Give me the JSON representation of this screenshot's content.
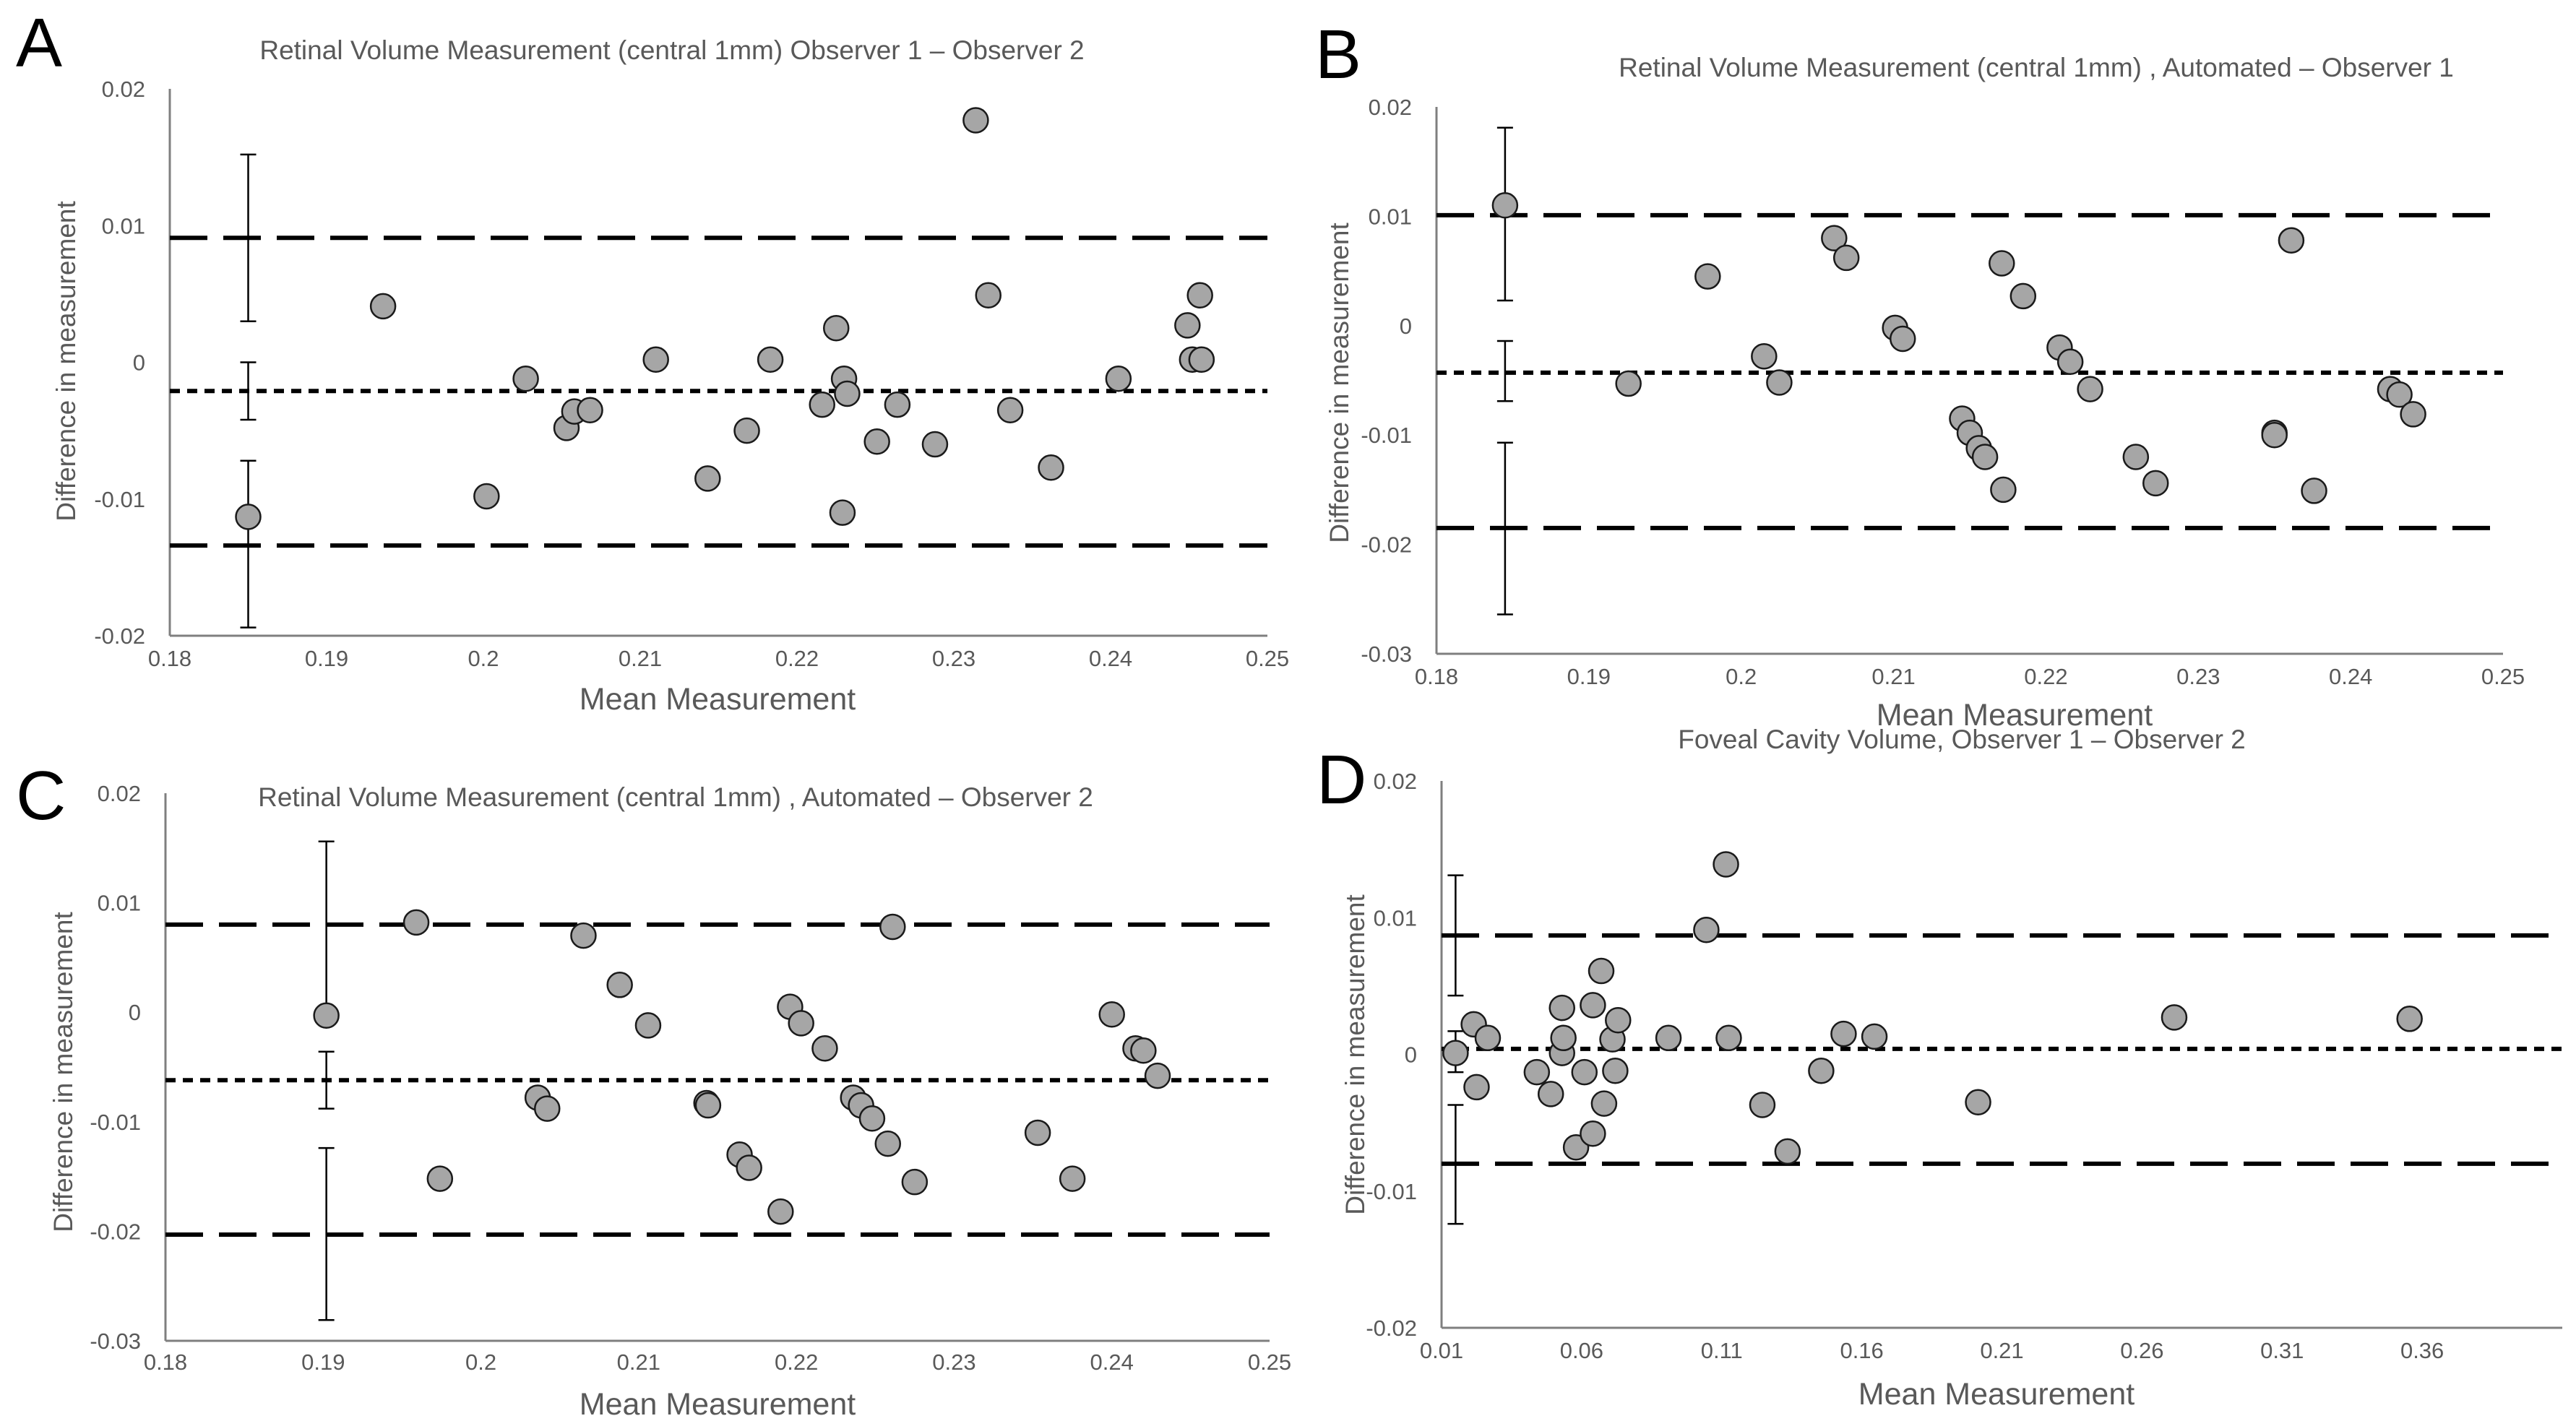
{
  "colors": {
    "marker_fill": "#a6a6a6",
    "marker_stroke": "#1a1a1a",
    "axis": "#7f7f7f",
    "line": "#000000",
    "text": "#595959"
  },
  "chart_data": [
    {
      "panel": "A",
      "type": "scatter",
      "title": "Retinal Volume Measurement (central 1mm) Observer 1 – Observer 2",
      "xlabel": "Mean Measurement",
      "ylabel": "Difference in measurement",
      "xlim": [
        0.18,
        0.25
      ],
      "ylim": [
        -0.02,
        0.02
      ],
      "xticks": [
        0.18,
        0.19,
        0.2,
        0.21,
        0.22,
        0.23,
        0.24,
        0.25
      ],
      "xtick_labels": [
        "0.18",
        "0.19",
        "0.2",
        "0.21",
        "0.22",
        "0.23",
        "0.24",
        "0.25"
      ],
      "yticks": [
        0.02,
        0.01,
        0,
        -0.01,
        -0.02
      ],
      "ytick_labels": [
        "0.02",
        "0.01",
        "0",
        "-0.01",
        "-0.02"
      ],
      "mean_diff": -0.0021,
      "upper_loa": 0.0091,
      "lower_loa": -0.0134,
      "ci_x": 0.185,
      "ci": {
        "upper": [
          0.003,
          0.0152
        ],
        "mean": [
          -0.0042,
          0.0
        ],
        "lower": [
          -0.0194,
          -0.0072
        ]
      },
      "points": [
        [
          0.185,
          -0.0113
        ],
        [
          0.1936,
          0.0041
        ],
        [
          0.2002,
          -0.0098
        ],
        [
          0.2027,
          -0.0012
        ],
        [
          0.2053,
          -0.0048
        ],
        [
          0.2058,
          -0.0036
        ],
        [
          0.2068,
          -0.0035
        ],
        [
          0.211,
          0.0002
        ],
        [
          0.2143,
          -0.0085
        ],
        [
          0.2168,
          -0.005
        ],
        [
          0.2183,
          0.0002
        ],
        [
          0.2216,
          -0.0031
        ],
        [
          0.2225,
          0.0025
        ],
        [
          0.223,
          -0.0012
        ],
        [
          0.2232,
          -0.0023
        ],
        [
          0.2229,
          -0.011
        ],
        [
          0.2251,
          -0.0058
        ],
        [
          0.2264,
          -0.0031
        ],
        [
          0.2288,
          -0.006
        ],
        [
          0.2314,
          0.0177
        ],
        [
          0.2322,
          0.0049
        ],
        [
          0.2336,
          -0.0035
        ],
        [
          0.2362,
          -0.0077
        ],
        [
          0.2405,
          -0.0012
        ],
        [
          0.2449,
          0.0027
        ],
        [
          0.2452,
          0.0002
        ],
        [
          0.2457,
          0.0049
        ],
        [
          0.2458,
          0.0002
        ]
      ]
    },
    {
      "panel": "B",
      "type": "scatter",
      "title": "Retinal Volume Measurement (central 1mm) , Automated – Observer 1",
      "xlabel": "Mean Measurement",
      "ylabel": "Difference in measurement",
      "xlim": [
        0.18,
        0.25
      ],
      "ylim": [
        -0.03,
        0.02
      ],
      "xticks": [
        0.18,
        0.19,
        0.2,
        0.21,
        0.22,
        0.23,
        0.24,
        0.25
      ],
      "xtick_labels": [
        "0.18",
        "0.19",
        "0.2",
        "0.21",
        "0.22",
        "0.23",
        "0.24",
        "0.25"
      ],
      "yticks": [
        0.02,
        0.01,
        0,
        -0.01,
        -0.02,
        -0.03
      ],
      "ytick_labels": [
        "0.02",
        "0.01",
        "0",
        "-0.01",
        "-0.02",
        "-0.03"
      ],
      "mean_diff": -0.0043,
      "upper_loa": 0.0101,
      "lower_loa": -0.0185,
      "ci_x": 0.1845,
      "ci": {
        "upper": [
          0.0023,
          0.0181
        ],
        "mean": [
          -0.0069,
          -0.0014
        ],
        "lower": [
          -0.0264,
          -0.0107
        ]
      },
      "points": [
        [
          0.1845,
          0.011
        ],
        [
          0.1926,
          -0.0053
        ],
        [
          0.1978,
          0.0045
        ],
        [
          0.2015,
          -0.0028
        ],
        [
          0.2025,
          -0.0052
        ],
        [
          0.2061,
          0.008
        ],
        [
          0.2069,
          0.0062
        ],
        [
          0.2101,
          -0.0002
        ],
        [
          0.2106,
          -0.0012
        ],
        [
          0.2145,
          -0.0085
        ],
        [
          0.215,
          -0.0098
        ],
        [
          0.2156,
          -0.0112
        ],
        [
          0.216,
          -0.012
        ],
        [
          0.2171,
          0.0057
        ],
        [
          0.2172,
          -0.015
        ],
        [
          0.2185,
          0.0027
        ],
        [
          0.2209,
          -0.002
        ],
        [
          0.2216,
          -0.0033
        ],
        [
          0.2229,
          -0.0058
        ],
        [
          0.2259,
          -0.012
        ],
        [
          0.2272,
          -0.0144
        ],
        [
          0.235,
          -0.0098
        ],
        [
          0.235,
          -0.01
        ],
        [
          0.2361,
          0.0078
        ],
        [
          0.2376,
          -0.0151
        ],
        [
          0.2426,
          -0.0058
        ],
        [
          0.2432,
          -0.0063
        ],
        [
          0.2441,
          -0.0081
        ]
      ]
    },
    {
      "panel": "C",
      "type": "scatter",
      "title": "Retinal Volume Measurement (central 1mm) , Automated – Observer 2",
      "xlabel": "Mean Measurement",
      "ylabel": "Difference in measurement",
      "xlim": [
        0.18,
        0.25
      ],
      "ylim": [
        -0.03,
        0.02
      ],
      "xticks": [
        0.18,
        0.19,
        0.2,
        0.21,
        0.22,
        0.23,
        0.24,
        0.25
      ],
      "xtick_labels": [
        "0.18",
        "0.19",
        "0.2",
        "0.21",
        "0.22",
        "0.23",
        "0.24",
        "0.25"
      ],
      "yticks": [
        0.02,
        0.01,
        0,
        -0.01,
        -0.02,
        -0.03
      ],
      "ytick_labels": [
        "0.02",
        "0.01",
        "0",
        "-0.01",
        "-0.02",
        "-0.03"
      ],
      "mean_diff": -0.0062,
      "upper_loa": 0.008,
      "lower_loa": -0.0203,
      "ci_x": 0.1902,
      "ci": {
        "upper": [
          -0.0002,
          0.0156
        ],
        "mean": [
          -0.0088,
          -0.0036
        ],
        "lower": [
          -0.0281,
          -0.0124
        ]
      },
      "points": [
        [
          0.1902,
          -0.0003
        ],
        [
          0.1959,
          0.0082
        ],
        [
          0.1974,
          -0.0152
        ],
        [
          0.2036,
          -0.0078
        ],
        [
          0.2042,
          -0.0088
        ],
        [
          0.2065,
          0.007
        ],
        [
          0.2088,
          0.0025
        ],
        [
          0.2106,
          -0.0012
        ],
        [
          0.2143,
          -0.0083
        ],
        [
          0.2144,
          -0.0085
        ],
        [
          0.2164,
          -0.013
        ],
        [
          0.217,
          -0.0142
        ],
        [
          0.219,
          -0.0182
        ],
        [
          0.2196,
          0.0005
        ],
        [
          0.2203,
          -0.001
        ],
        [
          0.2218,
          -0.0033
        ],
        [
          0.2236,
          -0.0078
        ],
        [
          0.2241,
          -0.0085
        ],
        [
          0.2248,
          -0.0097
        ],
        [
          0.2258,
          -0.012
        ],
        [
          0.2261,
          0.0078
        ],
        [
          0.2275,
          -0.0155
        ],
        [
          0.2353,
          -0.011
        ],
        [
          0.2375,
          -0.0152
        ],
        [
          0.24,
          -0.0002
        ],
        [
          0.2415,
          -0.0033
        ],
        [
          0.242,
          -0.0035
        ],
        [
          0.2429,
          -0.0058
        ]
      ]
    },
    {
      "panel": "D",
      "type": "scatter",
      "title": "Foveal Cavity Volume, Observer 1 – Observer 2",
      "xlabel": "Mean Measurement",
      "ylabel": "Difference in measurement",
      "xlim": [
        0.01,
        0.41
      ],
      "ylim": [
        -0.02,
        0.02
      ],
      "xticks": [
        0.01,
        0.06,
        0.11,
        0.16,
        0.21,
        0.26,
        0.31,
        0.36
      ],
      "xtick_labels": [
        "0.01",
        "0.06",
        "0.11",
        "0.16",
        "0.21",
        "0.26",
        "0.31",
        "0.36"
      ],
      "yticks": [
        0.02,
        0.01,
        0,
        -0.01,
        -0.02
      ],
      "ytick_labels": [
        "0.02",
        "0.01",
        "0",
        "-0.01",
        "-0.02"
      ],
      "mean_diff": 0.0004,
      "upper_loa": 0.0087,
      "lower_loa": -0.008,
      "ci_x": 0.015,
      "ci": {
        "upper": [
          0.0043,
          0.0131
        ],
        "mean": [
          -0.0013,
          0.0017
        ],
        "lower": [
          -0.0124,
          -0.0037
        ]
      },
      "points": [
        [
          0.015,
          0.0001
        ],
        [
          0.0215,
          0.0022
        ],
        [
          0.0225,
          -0.0024
        ],
        [
          0.0265,
          0.0012
        ],
        [
          0.044,
          -0.0013
        ],
        [
          0.049,
          -0.0029
        ],
        [
          0.053,
          0.0034
        ],
        [
          0.053,
          0.0001
        ],
        [
          0.0535,
          0.0012
        ],
        [
          0.058,
          -0.0068
        ],
        [
          0.061,
          -0.0013
        ],
        [
          0.064,
          0.0036
        ],
        [
          0.064,
          -0.0058
        ],
        [
          0.067,
          0.0061
        ],
        [
          0.068,
          -0.0036
        ],
        [
          0.071,
          0.0011
        ],
        [
          0.072,
          -0.0012
        ],
        [
          0.073,
          0.0025
        ],
        [
          0.091,
          0.0012
        ],
        [
          0.1045,
          0.0091
        ],
        [
          0.1115,
          0.0139
        ],
        [
          0.1125,
          0.0012
        ],
        [
          0.1245,
          -0.0037
        ],
        [
          0.1335,
          -0.0071
        ],
        [
          0.1455,
          -0.0012
        ],
        [
          0.1535,
          0.0015
        ],
        [
          0.1645,
          0.0013
        ],
        [
          0.2015,
          -0.0035
        ],
        [
          0.2715,
          0.0027
        ],
        [
          0.3555,
          0.0026
        ]
      ]
    }
  ]
}
